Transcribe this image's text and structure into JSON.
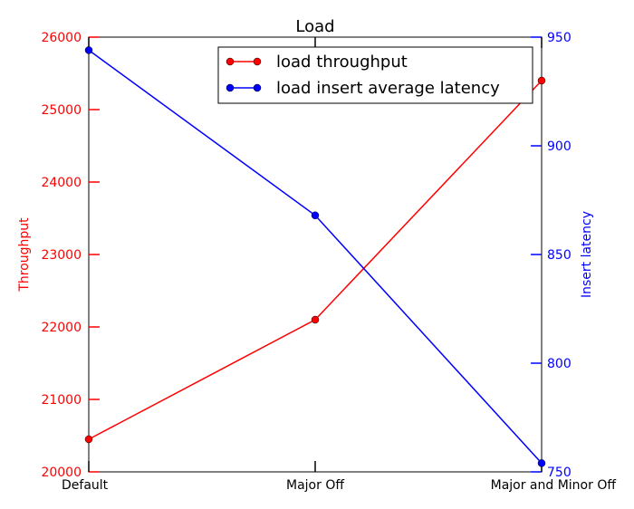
{
  "chart_data": {
    "type": "line",
    "title": "Load",
    "categories": [
      "Default",
      "Major Off",
      "Major and Minor Off"
    ],
    "left_axis": {
      "label": "Throughput",
      "color": "#ff0000",
      "ylim": [
        20000,
        26000
      ],
      "ticks": [
        20000,
        21000,
        22000,
        23000,
        24000,
        25000,
        26000
      ],
      "tick_labels": [
        "20000",
        "21000",
        "22000",
        "23000",
        "24000",
        "25000",
        "26000"
      ]
    },
    "right_axis": {
      "label": "Insert latency",
      "color": "#0000ff",
      "ylim": [
        750,
        950
      ],
      "ticks": [
        750,
        800,
        850,
        900,
        950
      ],
      "tick_labels": [
        "750",
        "800",
        "850",
        "900",
        "950"
      ]
    },
    "series": [
      {
        "name": "load throughput",
        "axis": "left",
        "color": "#ff0000",
        "values": [
          20450,
          22100,
          25400
        ]
      },
      {
        "name": "load insert average latency",
        "axis": "right",
        "color": "#0000ff",
        "values": [
          944,
          868,
          754
        ]
      }
    ],
    "legend_position": "top-right",
    "grid": false
  }
}
